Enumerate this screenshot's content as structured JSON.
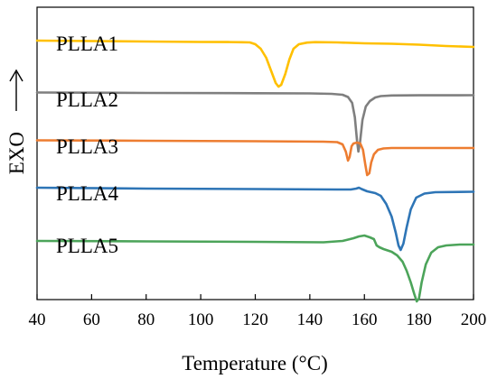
{
  "chart_data": {
    "type": "line",
    "xlabel": "Temperature (°C)",
    "ylabel": "EXO",
    "xlim": [
      40,
      200
    ],
    "x_ticks": [
      40,
      60,
      80,
      100,
      120,
      140,
      160,
      180,
      200
    ],
    "y_ticks": false,
    "grid": false,
    "legend": "none (inline labels)",
    "series": [
      {
        "name": "PLLA1",
        "color": "#FFC000",
        "points": [
          [
            40,
            37
          ],
          [
            60,
            37.5
          ],
          [
            80,
            38
          ],
          [
            100,
            38.5
          ],
          [
            110,
            38.6
          ],
          [
            115,
            38.8
          ],
          [
            118,
            39
          ],
          [
            120,
            41
          ],
          [
            122,
            46
          ],
          [
            124,
            56
          ],
          [
            126,
            72
          ],
          [
            127.5,
            84
          ],
          [
            128.5,
            88
          ],
          [
            129.5,
            86
          ],
          [
            131,
            74
          ],
          [
            132.5,
            58
          ],
          [
            134,
            46
          ],
          [
            136,
            41
          ],
          [
            139,
            39.2
          ],
          [
            142,
            38.7
          ],
          [
            150,
            39
          ],
          [
            160,
            40
          ],
          [
            170,
            40.5
          ],
          [
            180,
            41.5
          ],
          [
            190,
            43
          ],
          [
            200,
            44
          ]
        ]
      },
      {
        "name": "PLLA2",
        "color": "#7F7F7F",
        "points": [
          [
            40,
            94.5
          ],
          [
            80,
            95
          ],
          [
            120,
            95.3
          ],
          [
            140,
            95.5
          ],
          [
            148,
            96
          ],
          [
            152,
            97
          ],
          [
            154,
            99.5
          ],
          [
            155.5,
            106
          ],
          [
            156.5,
            122
          ],
          [
            157.3,
            148
          ],
          [
            157.8,
            160
          ],
          [
            158.4,
            150
          ],
          [
            159.3,
            125
          ],
          [
            160.5,
            110
          ],
          [
            162,
            104
          ],
          [
            164,
            100
          ],
          [
            166,
            98.5
          ],
          [
            170,
            97.8
          ],
          [
            180,
            97.6
          ],
          [
            200,
            97.5
          ]
        ]
      },
      {
        "name": "PLLA3",
        "color": "#ED7D31",
        "points": [
          [
            40,
            147.5
          ],
          [
            80,
            148
          ],
          [
            120,
            148.5
          ],
          [
            145,
            149
          ],
          [
            150,
            149.5
          ],
          [
            152,
            152
          ],
          [
            153.2,
            160
          ],
          [
            154,
            170
          ],
          [
            154.6,
            166
          ],
          [
            155.3,
            154
          ],
          [
            156,
            151
          ],
          [
            157.3,
            150
          ],
          [
            158.5,
            151
          ],
          [
            159.5,
            158
          ],
          [
            160.3,
            174
          ],
          [
            161,
            186
          ],
          [
            161.8,
            184
          ],
          [
            162.5,
            172
          ],
          [
            163.5,
            163
          ],
          [
            165,
            158
          ],
          [
            167,
            156.5
          ],
          [
            170,
            156
          ],
          [
            185,
            156
          ],
          [
            200,
            156
          ]
        ]
      },
      {
        "name": "PLLA4",
        "color": "#2E75B6",
        "points": [
          [
            40,
            200
          ],
          [
            80,
            201
          ],
          [
            120,
            201.5
          ],
          [
            150,
            202
          ],
          [
            155,
            202
          ],
          [
            157,
            201
          ],
          [
            158,
            200
          ],
          [
            159,
            201.5
          ],
          [
            161,
            204
          ],
          [
            164,
            206
          ],
          [
            166,
            209
          ],
          [
            168,
            218
          ],
          [
            170,
            232
          ],
          [
            171.5,
            250
          ],
          [
            172.5,
            264
          ],
          [
            173.3,
            269
          ],
          [
            174.3,
            262
          ],
          [
            175.5,
            244
          ],
          [
            177,
            224
          ],
          [
            179,
            211
          ],
          [
            182,
            206.5
          ],
          [
            186,
            205
          ],
          [
            200,
            204.5
          ]
        ]
      },
      {
        "name": "PLLA5",
        "color": "#4CA45A",
        "points": [
          [
            40,
            259
          ],
          [
            80,
            259.5
          ],
          [
            120,
            260
          ],
          [
            145,
            260.5
          ],
          [
            152,
            259
          ],
          [
            156,
            256
          ],
          [
            158,
            254
          ],
          [
            160,
            253
          ],
          [
            162,
            255
          ],
          [
            163.5,
            257
          ],
          [
            164.5,
            264
          ],
          [
            165.5,
            266
          ],
          [
            167,
            268
          ],
          [
            170,
            271
          ],
          [
            172,
            275
          ],
          [
            174,
            282
          ],
          [
            175.5,
            292
          ],
          [
            177,
            305
          ],
          [
            178.3,
            318
          ],
          [
            179.2,
            326
          ],
          [
            180,
            323
          ],
          [
            181,
            305
          ],
          [
            182.5,
            285
          ],
          [
            184.5,
            272
          ],
          [
            187,
            266
          ],
          [
            190,
            264
          ],
          [
            195,
            263
          ],
          [
            200,
            263
          ]
        ]
      }
    ]
  }
}
